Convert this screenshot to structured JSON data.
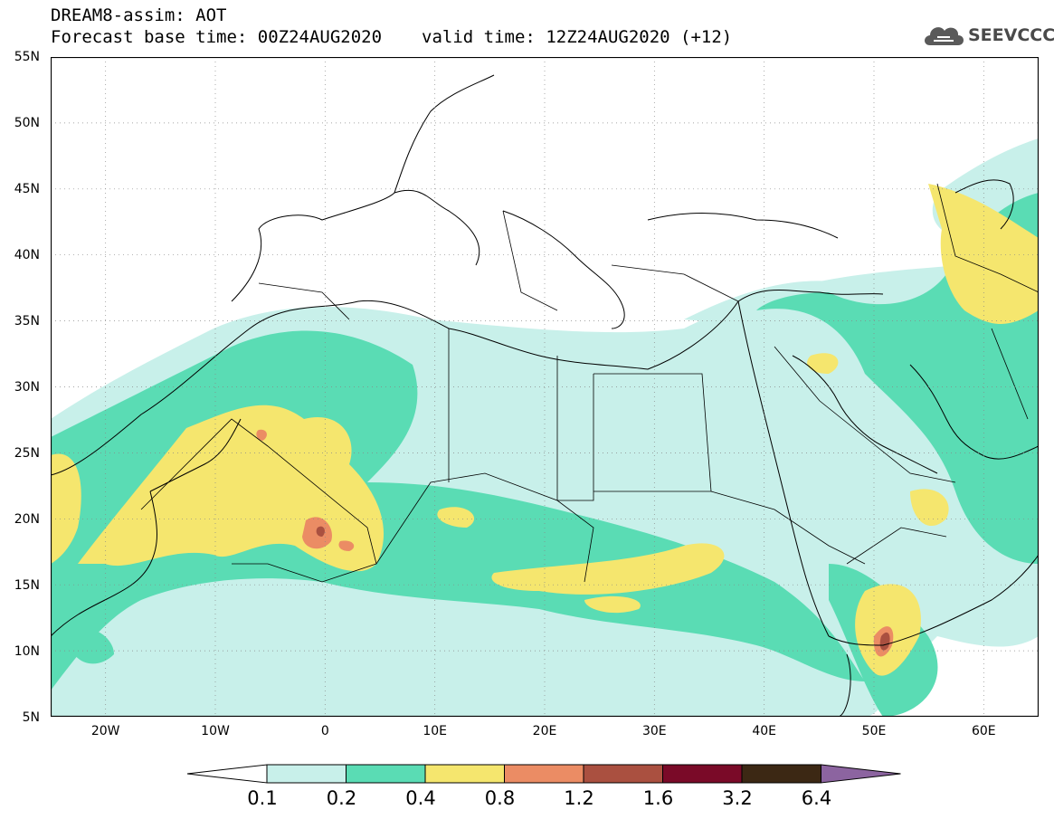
{
  "header": {
    "title": "DREAM8-assim: AOT",
    "base_time": "Forecast base time: 00Z24AUG2020",
    "valid_time": "valid time: 12Z24AUG2020 (+12)",
    "logo_text": "SEEVCCC"
  },
  "axes": {
    "lat_labels": [
      "55N",
      "50N",
      "45N",
      "40N",
      "35N",
      "30N",
      "25N",
      "20N",
      "15N",
      "10N",
      "5N"
    ],
    "lon_labels": [
      "20W",
      "10W",
      "0",
      "10E",
      "20E",
      "30E",
      "40E",
      "50E",
      "60E"
    ]
  },
  "colorbar": {
    "labels": [
      "0.1",
      "0.2",
      "0.4",
      "0.8",
      "1.2",
      "1.6",
      "3.2",
      "6.4"
    ],
    "colors": [
      "#ffffff",
      "#c8f0ea",
      "#5adcb4",
      "#f5e66e",
      "#eb8c64",
      "#aa5040",
      "#7a0a28",
      "#3c2814",
      "#8c64a0"
    ]
  },
  "map": {
    "lon_range": [
      -25,
      65
    ],
    "lat_range": [
      5,
      55
    ]
  }
}
